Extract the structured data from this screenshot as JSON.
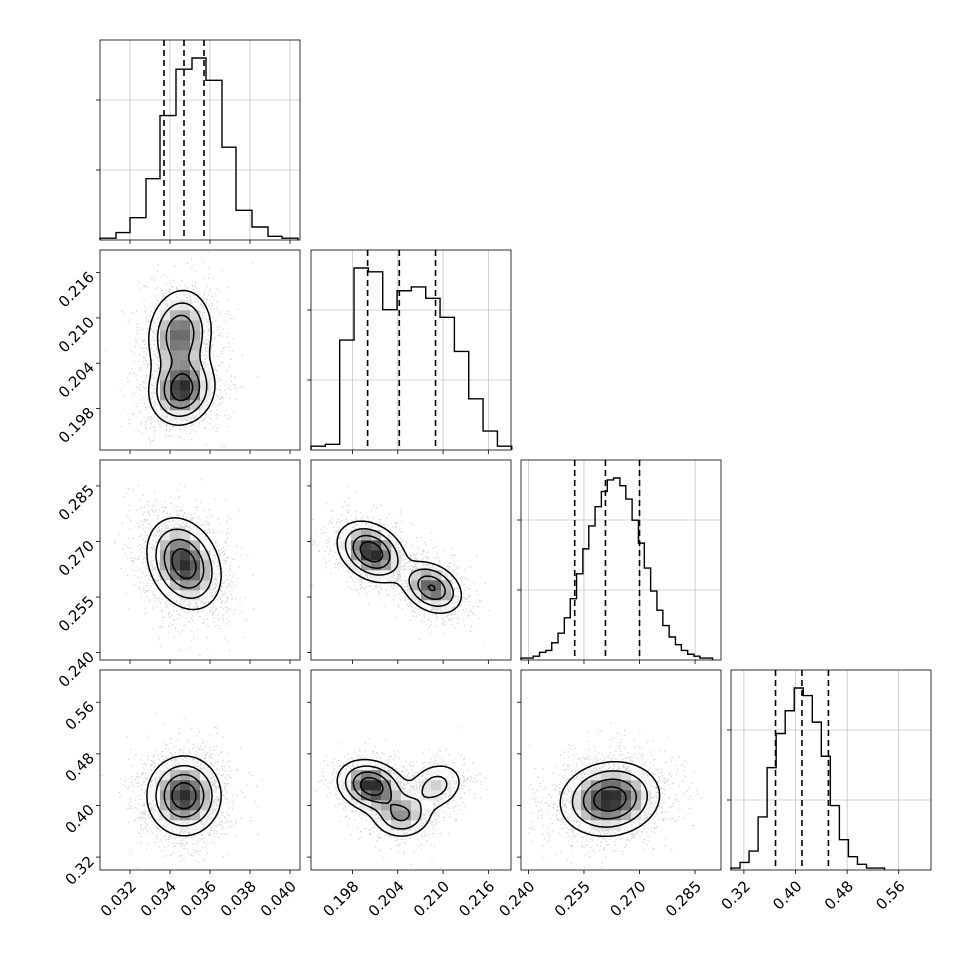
{
  "chart_data": [
    {
      "type": "histogram",
      "panel": "p0-p0",
      "bins": [
        0.0305,
        0.0313,
        0.032,
        0.0328,
        0.0335,
        0.0343,
        0.0351,
        0.0358,
        0.0366,
        0.0373,
        0.0381,
        0.0389,
        0.0396,
        0.0404
      ],
      "counts": [
        1,
        4,
        12,
        33,
        67,
        92,
        98,
        86,
        50,
        16,
        7,
        2,
        1
      ],
      "quantiles": [
        0.0337,
        0.0347,
        0.0357
      ],
      "xlim": [
        0.0305,
        0.0405
      ],
      "grid": true
    },
    {
      "type": "histogram",
      "panel": "p1-p1",
      "bins": [
        0.1925,
        0.1944,
        0.1963,
        0.1982,
        0.2001,
        0.202,
        0.2039,
        0.2058,
        0.2077,
        0.2096,
        0.2115,
        0.2134,
        0.2153,
        0.2172,
        0.2191
      ],
      "counts": [
        2,
        3,
        58,
        96,
        94,
        74,
        84,
        86,
        80,
        70,
        52,
        27,
        10,
        2
      ],
      "quantiles": [
        0.2,
        0.2042,
        0.209
      ],
      "xlim": [
        0.1925,
        0.219
      ],
      "grid": true
    },
    {
      "type": "histogram",
      "panel": "p2-p2",
      "bins": [
        0.238,
        0.2397,
        0.2413,
        0.243,
        0.2447,
        0.2463,
        0.248,
        0.2497,
        0.2513,
        0.253,
        0.2547,
        0.2563,
        0.258,
        0.2597,
        0.2613,
        0.263,
        0.2647,
        0.2663,
        0.268,
        0.2697,
        0.2713,
        0.273,
        0.2747,
        0.2763,
        0.278,
        0.2797,
        0.2813,
        0.283,
        0.2847,
        0.2863,
        0.288,
        0.2897
      ],
      "counts": [
        1,
        1,
        2,
        4,
        5,
        9,
        14,
        22,
        32,
        45,
        58,
        70,
        80,
        88,
        94,
        95,
        91,
        84,
        73,
        61,
        48,
        36,
        26,
        18,
        12,
        8,
        5,
        3,
        2,
        1,
        1
      ],
      "quantiles": [
        0.2525,
        0.2608,
        0.27
      ],
      "xlim": [
        0.238,
        0.292
      ],
      "grid": true
    },
    {
      "type": "histogram",
      "panel": "p3-p3",
      "bins": [
        0.3,
        0.314,
        0.328,
        0.342,
        0.356,
        0.37,
        0.384,
        0.398,
        0.412,
        0.426,
        0.44,
        0.454,
        0.468,
        0.482,
        0.496,
        0.51,
        0.524,
        0.538
      ],
      "counts": [
        1,
        4,
        10,
        28,
        54,
        72,
        84,
        96,
        92,
        78,
        60,
        34,
        16,
        7,
        3,
        1,
        1
      ],
      "quantiles": [
        0.369,
        0.41,
        0.451
      ],
      "xlim": [
        0.3,
        0.61
      ],
      "grid": true
    },
    {
      "type": "scatter",
      "panel": "p0-p1",
      "density_model": [
        {
          "cx": 0.0346,
          "cy": 0.2005,
          "sx": 0.0008,
          "sy": 0.0023,
          "rho": 0.1,
          "w": 0.55
        },
        {
          "cx": 0.0345,
          "cy": 0.2078,
          "sx": 0.0008,
          "sy": 0.003,
          "rho": 0.1,
          "w": 0.45
        }
      ],
      "xlim": [
        0.0305,
        0.0405
      ],
      "ylim": [
        0.1925,
        0.219
      ],
      "points": 2000,
      "contours": true
    },
    {
      "type": "scatter",
      "panel": "p0-p2",
      "density_model": [
        {
          "cx": 0.0347,
          "cy": 0.264,
          "sx": 0.0009,
          "sy": 0.006,
          "rho": -0.25,
          "w": 1.0
        }
      ],
      "xlim": [
        0.0305,
        0.0405
      ],
      "ylim": [
        0.238,
        0.292
      ],
      "points": 2000,
      "contours": true
    },
    {
      "type": "scatter",
      "panel": "p1-p2",
      "density_model": [
        {
          "cx": 0.2005,
          "cy": 0.2672,
          "sx": 0.0022,
          "sy": 0.004,
          "rho": -0.3,
          "w": 0.55
        },
        {
          "cx": 0.2085,
          "cy": 0.2575,
          "sx": 0.002,
          "sy": 0.0035,
          "rho": -0.3,
          "w": 0.45
        }
      ],
      "xlim": [
        0.1925,
        0.219
      ],
      "ylim": [
        0.238,
        0.292
      ],
      "points": 2000,
      "contours": true
    },
    {
      "type": "scatter",
      "panel": "p0-p3",
      "density_model": [
        {
          "cx": 0.0347,
          "cy": 0.415,
          "sx": 0.0009,
          "sy": 0.03,
          "rho": 0.0,
          "w": 1.0
        }
      ],
      "xlim": [
        0.0305,
        0.0405
      ],
      "ylim": [
        0.3,
        0.61
      ],
      "points": 2000,
      "contours": true
    },
    {
      "type": "scatter",
      "panel": "p1-p3",
      "density_model": [
        {
          "cx": 0.2005,
          "cy": 0.43,
          "sx": 0.0022,
          "sy": 0.02,
          "rho": -0.2,
          "w": 0.5
        },
        {
          "cx": 0.2045,
          "cy": 0.385,
          "sx": 0.002,
          "sy": 0.018,
          "rho": 0.0,
          "w": 0.3
        },
        {
          "cx": 0.209,
          "cy": 0.43,
          "sx": 0.002,
          "sy": 0.02,
          "rho": 0.2,
          "w": 0.2
        }
      ],
      "xlim": [
        0.1925,
        0.219
      ],
      "ylim": [
        0.3,
        0.61
      ],
      "points": 2000,
      "contours": true
    },
    {
      "type": "scatter",
      "panel": "p2-p3",
      "density_model": [
        {
          "cx": 0.262,
          "cy": 0.41,
          "sx": 0.0065,
          "sy": 0.028,
          "rho": 0.1,
          "w": 1.0
        }
      ],
      "xlim": [
        0.238,
        0.292
      ],
      "ylim": [
        0.3,
        0.61
      ],
      "points": 2000,
      "contours": true
    }
  ],
  "axes": {
    "p0": {
      "ticks": [
        "0.032",
        "0.034",
        "0.036",
        "0.038",
        "0.040"
      ],
      "tick_values": [
        0.032,
        0.034,
        0.036,
        0.038,
        0.04
      ]
    },
    "p1": {
      "ticks": [
        "0.198",
        "0.204",
        "0.210",
        "0.216"
      ],
      "tick_values": [
        0.198,
        0.204,
        0.21,
        0.216
      ]
    },
    "p2": {
      "ticks": [
        "0.240",
        "0.255",
        "0.270",
        "0.285"
      ],
      "tick_values": [
        0.24,
        0.255,
        0.27,
        0.285
      ]
    },
    "p3": {
      "ticks": [
        "0.32",
        "0.40",
        "0.48",
        "0.56"
      ],
      "tick_values": [
        0.32,
        0.4,
        0.48,
        0.56
      ]
    }
  },
  "colors": {
    "points": "#000000",
    "density": "#000000",
    "lines": "#000000",
    "grid": "#b0b0b0"
  }
}
